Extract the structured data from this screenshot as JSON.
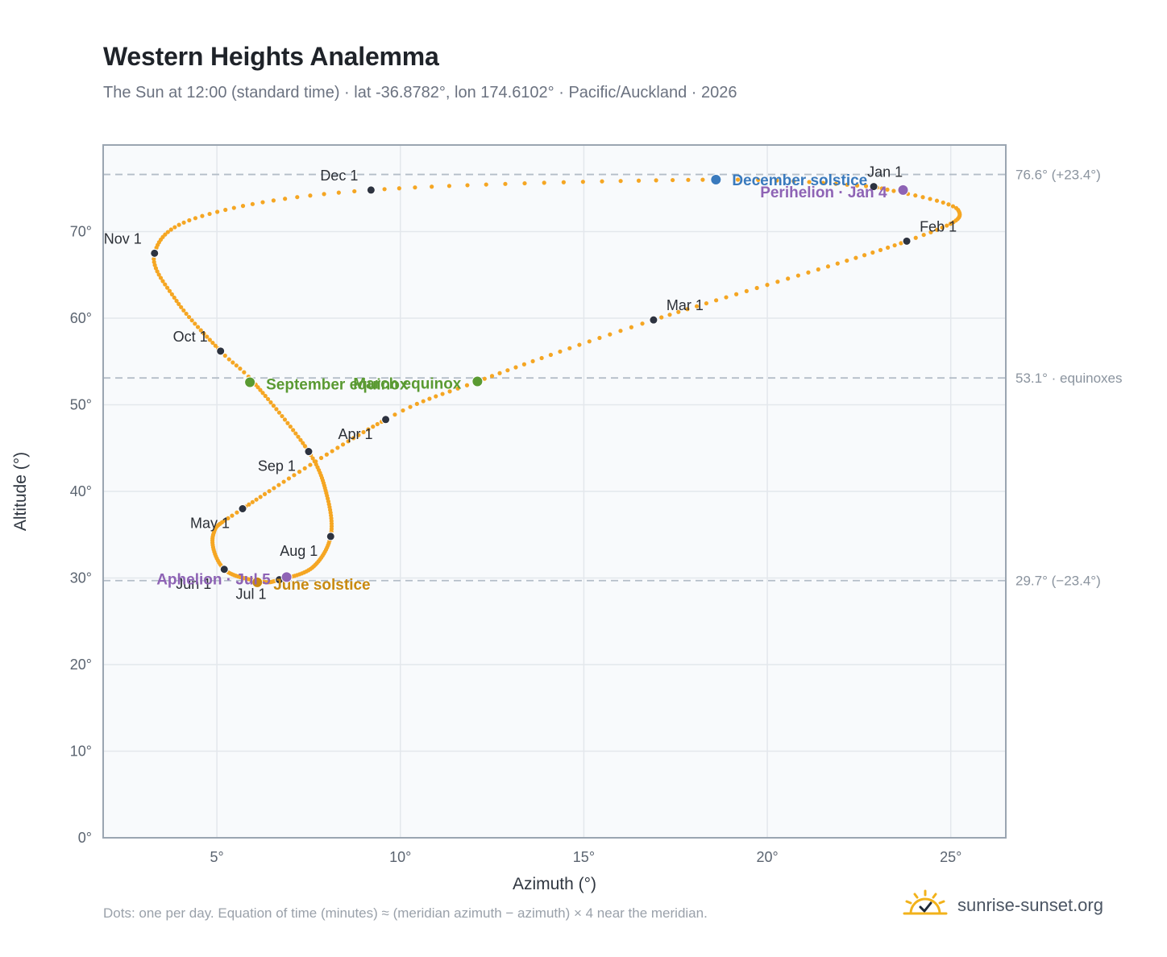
{
  "header": {
    "title": "Western Heights Analemma",
    "subtitle": "The Sun at 12:00 (standard time) · lat -36.8782°, lon 174.6102° · Pacific/Auckland · 2026"
  },
  "footer": {
    "note": "Dots: one per day. Equation of time (minutes) ≈ (meridian azimuth − azimuth) × 4 near the meridian.",
    "brand": "sunrise-sunset.org",
    "brand_icon": "sun-icon"
  },
  "chart_data": {
    "type": "scatter",
    "xlabel": "Azimuth (°)",
    "ylabel": "Altitude (°)",
    "xlim": [
      1.9,
      26.5
    ],
    "ylim": [
      0,
      80
    ],
    "x_ticks": [
      5,
      10,
      15,
      20,
      25
    ],
    "x_tick_labels": [
      "5°",
      "10°",
      "15°",
      "20°",
      "25°"
    ],
    "y_ticks": [
      0,
      10,
      20,
      30,
      40,
      50,
      60,
      70
    ],
    "y_tick_labels": [
      "0°",
      "10°",
      "20°",
      "30°",
      "40°",
      "50°",
      "60°",
      "70°"
    ],
    "grid": true,
    "colors": {
      "path": "#f5a623",
      "month": "#2d3340",
      "solstice_dec": "#3a7abd",
      "solstice_jun": "#c98a10",
      "equinox": "#5a9a32",
      "apsis": "#8e63b5",
      "reference": "#b4bec8",
      "plot_bg": "#f8fafc",
      "frame": "#9aa5b1",
      "grid": "#e3e7ec"
    },
    "reference_lines": [
      {
        "y": 76.6,
        "label": "76.6° (+23.4°)"
      },
      {
        "y": 53.1,
        "label": "53.1° · equinoxes"
      },
      {
        "y": 29.7,
        "label": "29.7° (−23.4°)"
      }
    ],
    "path_keypoints": [
      {
        "doy": 1,
        "x": 22.9,
        "y": 75.2
      },
      {
        "doy": 16,
        "x": 25.2,
        "y": 72.5
      },
      {
        "doy": 32,
        "x": 23.8,
        "y": 68.9
      },
      {
        "doy": 60,
        "x": 16.9,
        "y": 59.8
      },
      {
        "doy": 79,
        "x": 12.1,
        "y": 52.7
      },
      {
        "doy": 91,
        "x": 9.6,
        "y": 48.3
      },
      {
        "doy": 121,
        "x": 5.7,
        "y": 38.0
      },
      {
        "doy": 135,
        "x": 4.9,
        "y": 35.0
      },
      {
        "doy": 152,
        "x": 5.2,
        "y": 31.0
      },
      {
        "doy": 172,
        "x": 6.2,
        "y": 29.6
      },
      {
        "doy": 182,
        "x": 6.7,
        "y": 29.8
      },
      {
        "doy": 197,
        "x": 7.6,
        "y": 31.2
      },
      {
        "doy": 213,
        "x": 8.1,
        "y": 34.8
      },
      {
        "doy": 228,
        "x": 8.0,
        "y": 39.5
      },
      {
        "doy": 244,
        "x": 7.5,
        "y": 44.6
      },
      {
        "doy": 266,
        "x": 6.0,
        "y": 52.6
      },
      {
        "doy": 274,
        "x": 5.1,
        "y": 56.2
      },
      {
        "doy": 290,
        "x": 3.9,
        "y": 62.0
      },
      {
        "doy": 305,
        "x": 3.3,
        "y": 67.5
      },
      {
        "doy": 320,
        "x": 4.6,
        "y": 71.8
      },
      {
        "doy": 335,
        "x": 9.2,
        "y": 74.8
      },
      {
        "doy": 355,
        "x": 18.6,
        "y": 76.0
      },
      {
        "doy": 366,
        "x": 22.9,
        "y": 75.2
      }
    ],
    "months": [
      {
        "label": "Jan 1",
        "x": 22.9,
        "y": 75.2,
        "anchor": "middle",
        "dx": 14,
        "dy": -12
      },
      {
        "label": "Feb 1",
        "x": 23.8,
        "y": 68.9,
        "anchor": "start",
        "dx": 16,
        "dy": -12
      },
      {
        "label": "Mar 1",
        "x": 16.9,
        "y": 59.8,
        "anchor": "start",
        "dx": 16,
        "dy": -12
      },
      {
        "label": "Apr 1",
        "x": 9.6,
        "y": 48.3,
        "anchor": "end",
        "dx": -16,
        "dy": 24
      },
      {
        "label": "May 1",
        "x": 5.7,
        "y": 38.0,
        "anchor": "end",
        "dx": -16,
        "dy": 24
      },
      {
        "label": "Jun 1",
        "x": 5.2,
        "y": 31.0,
        "anchor": "end",
        "dx": -16,
        "dy": 24
      },
      {
        "label": "Jul 1",
        "x": 6.7,
        "y": 29.8,
        "anchor": "end",
        "dx": -16,
        "dy": 24
      },
      {
        "label": "Aug 1",
        "x": 8.1,
        "y": 34.8,
        "anchor": "end",
        "dx": -16,
        "dy": 24
      },
      {
        "label": "Sep 1",
        "x": 7.5,
        "y": 44.6,
        "anchor": "end",
        "dx": -16,
        "dy": 24
      },
      {
        "label": "Oct 1",
        "x": 5.1,
        "y": 56.2,
        "anchor": "end",
        "dx": -16,
        "dy": -12
      },
      {
        "label": "Nov 1",
        "x": 3.3,
        "y": 67.5,
        "anchor": "end",
        "dx": -16,
        "dy": -12
      },
      {
        "label": "Dec 1",
        "x": 9.2,
        "y": 74.8,
        "anchor": "end",
        "dx": -16,
        "dy": -12
      }
    ],
    "events": [
      {
        "label": "December solstice",
        "x": 18.6,
        "y": 76.0,
        "kind": "solstice_dec",
        "anchor": "start",
        "dx": 20,
        "dy": 7
      },
      {
        "label": "Perihelion · Jan 4",
        "x": 23.7,
        "y": 74.8,
        "kind": "apsis",
        "anchor": "end",
        "dx": -20,
        "dy": 9
      },
      {
        "label": "March equinox",
        "x": 12.1,
        "y": 52.7,
        "kind": "equinox",
        "anchor": "end",
        "dx": -20,
        "dy": 9
      },
      {
        "label": "September equinox",
        "x": 5.9,
        "y": 52.6,
        "kind": "equinox",
        "anchor": "start",
        "dx": 20,
        "dy": 9
      },
      {
        "label": "June solstice",
        "x": 6.1,
        "y": 29.5,
        "kind": "solstice_jun",
        "anchor": "start",
        "dx": 20,
        "dy": 9
      },
      {
        "label": "Aphelion · Jul 5",
        "x": 6.9,
        "y": 30.1,
        "kind": "apsis",
        "anchor": "end",
        "dx": -20,
        "dy": 9
      }
    ]
  }
}
